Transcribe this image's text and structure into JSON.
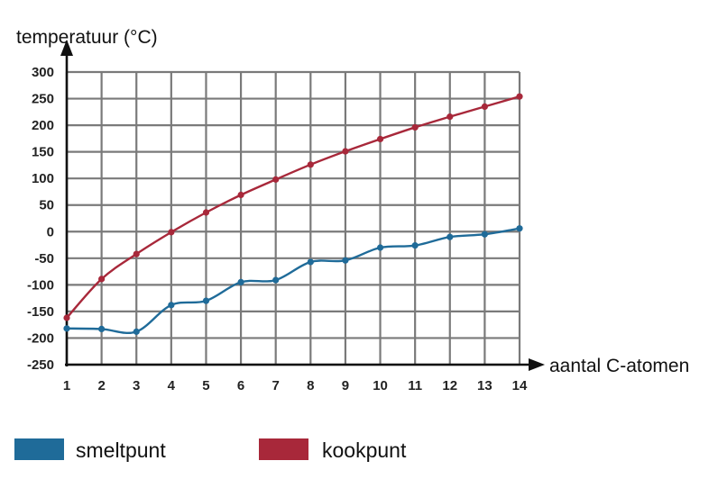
{
  "chart_data": {
    "type": "line",
    "ylabel": "temperatuur (°C)",
    "xlabel": "aantal C-atomen",
    "x": [
      1,
      2,
      3,
      4,
      5,
      6,
      7,
      8,
      9,
      10,
      11,
      12,
      13,
      14
    ],
    "xlim": [
      1,
      14
    ],
    "ylim": [
      -250,
      300
    ],
    "yticks": [
      300,
      250,
      200,
      150,
      100,
      50,
      0,
      -50,
      -100,
      -150,
      -200,
      -250
    ],
    "grid": true,
    "legend": "bottom",
    "series": [
      {
        "name": "smeltpunt",
        "color": "#1f6b99",
        "values": [
          -182,
          -183,
          -188,
          -138,
          -130,
          -95,
          -91,
          -57,
          -54,
          -30,
          -26,
          -10,
          -5,
          6
        ]
      },
      {
        "name": "kookpunt",
        "color": "#a8283a",
        "values": [
          -162,
          -89,
          -42,
          -1,
          36,
          69,
          98,
          126,
          151,
          174,
          196,
          216,
          235,
          254
        ]
      }
    ]
  }
}
